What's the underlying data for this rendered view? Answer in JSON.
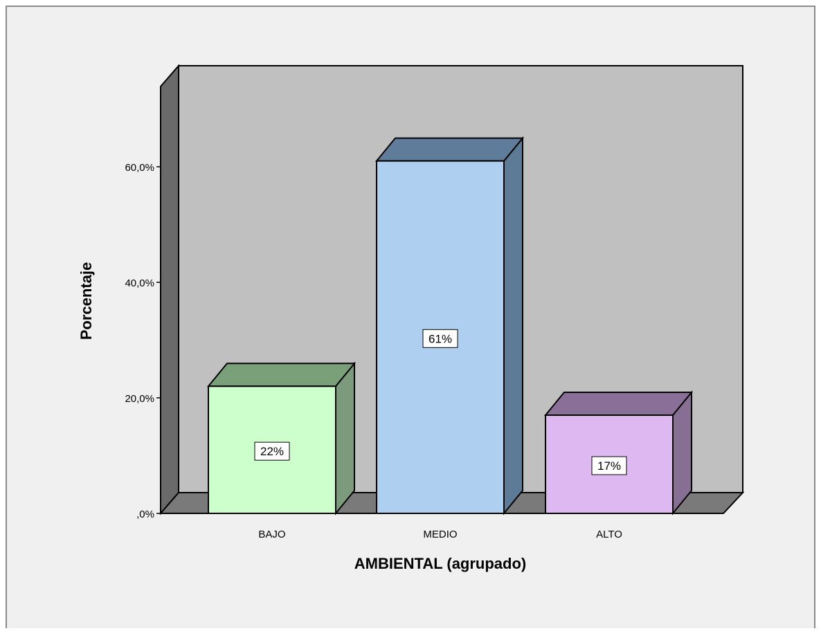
{
  "chart_data": {
    "type": "bar",
    "categories": [
      "BAJO",
      "MEDIO",
      "ALTO"
    ],
    "values": [
      22,
      61,
      17
    ],
    "data_labels": [
      "22%",
      "61%",
      "17%"
    ],
    "xlabel": "AMBIENTAL (agrupado)",
    "ylabel": "Porcentaje",
    "ylim": [
      0,
      80
    ],
    "yticks": [
      0,
      20,
      40,
      60
    ],
    "ytick_labels": [
      ",0%",
      "20,0%",
      "40,0%",
      "60,0%"
    ],
    "grid": false,
    "style": "3d",
    "colors": {
      "plot_background": "#c0c0c0",
      "back_wall_side": "#6a6a6a",
      "floor": "#7a7a7a",
      "frame_background": "#f0f0f0",
      "bars": [
        {
          "front": "#ccffcc",
          "top": "#7aa07a",
          "side": "#7c9b7c"
        },
        {
          "front": "#aecfef",
          "top": "#5f7d9a",
          "side": "#5d7a96"
        },
        {
          "front": "#deb8f0",
          "top": "#8a6f98",
          "side": "#866f93"
        }
      ]
    }
  }
}
